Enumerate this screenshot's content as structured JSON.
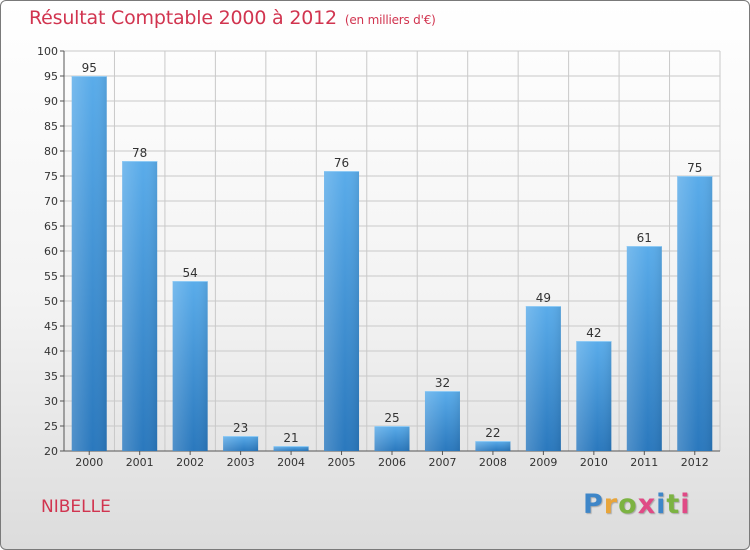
{
  "header": {
    "title": "Résultat Comptable 2000 à 2012",
    "subtitle": "(en milliers d'€)"
  },
  "footer": {
    "commune": "NIBELLE"
  },
  "logo": {
    "letters": [
      "P",
      "r",
      "o",
      "x",
      "i",
      "t",
      "i"
    ],
    "colors": [
      "#3e86c8",
      "#e8a53a",
      "#7cb342",
      "#e04a86",
      "#3e86c8",
      "#7cb342",
      "#e04a86"
    ]
  },
  "colors": {
    "bar_light": "#5aacea",
    "bar_dark": "#2a78bd",
    "grid": "#c9c9c9",
    "title": "#d1344f"
  },
  "chart_data": {
    "type": "bar",
    "title": "Résultat Comptable 2000 à 2012",
    "subtitle": "(en milliers d'€)",
    "xlabel": "",
    "ylabel": "",
    "categories": [
      "2000",
      "2001",
      "2002",
      "2003",
      "2004",
      "2005",
      "2006",
      "2007",
      "2008",
      "2009",
      "2010",
      "2011",
      "2012"
    ],
    "values": [
      95,
      78,
      54,
      23,
      21,
      76,
      25,
      32,
      22,
      49,
      42,
      61,
      75
    ],
    "ylim": [
      20,
      100
    ],
    "yticks": [
      20,
      25,
      30,
      35,
      40,
      45,
      50,
      55,
      60,
      65,
      70,
      75,
      80,
      85,
      90,
      95,
      100
    ],
    "grid": true
  }
}
